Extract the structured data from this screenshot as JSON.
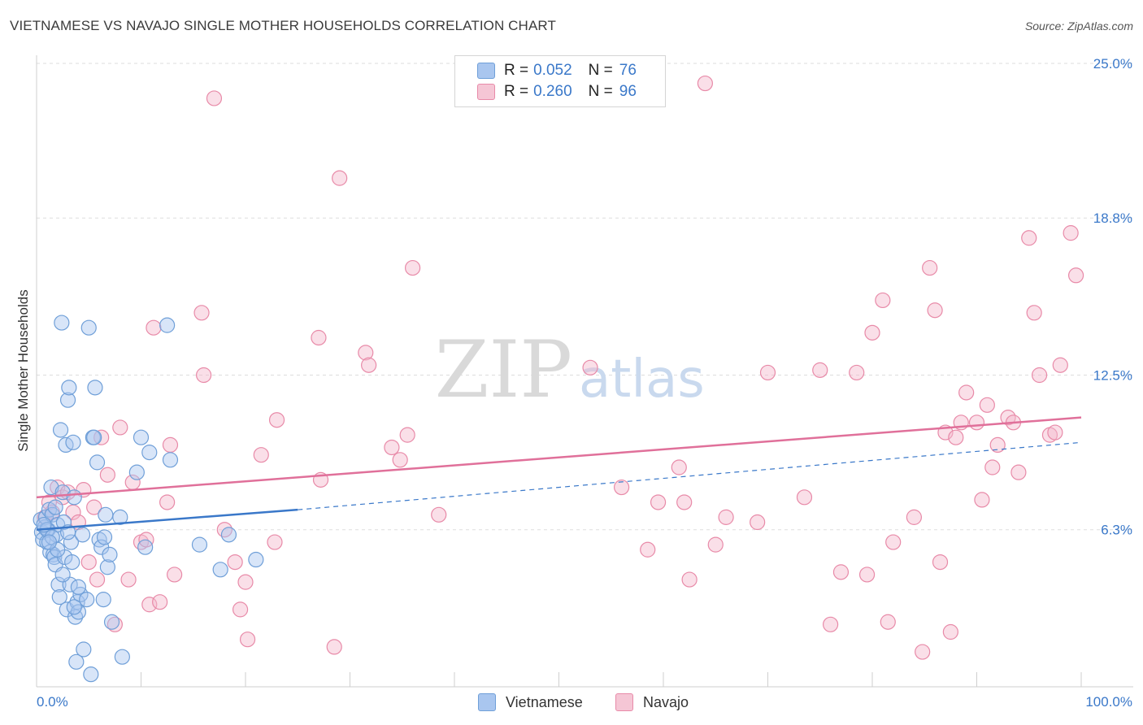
{
  "title": "VIETNAMESE VS NAVAJO SINGLE MOTHER HOUSEHOLDS CORRELATION CHART",
  "source": "Source: ZipAtlas.com",
  "watermark": {
    "zip": "ZIP",
    "atlas": "atlas"
  },
  "colors": {
    "blue_fill": "#a9c6ef",
    "blue_stroke": "#6f9fd8",
    "blue_line": "#3a78c9",
    "pink_fill": "#f5b9cc",
    "pink_stroke": "#e88aa8",
    "pink_line": "#e0709a",
    "axis_text": "#3a78c9",
    "grid": "#dddddd"
  },
  "legend": {
    "rows": [
      {
        "r_label": "R =",
        "r_value": "0.052",
        "n_label": "N =",
        "n_value": "76"
      },
      {
        "r_label": "R =",
        "r_value": "0.260",
        "n_label": "N =",
        "n_value": "96"
      }
    ]
  },
  "bottom_legend": {
    "series1": "Vietnamese",
    "series2": "Navajo"
  },
  "chart_data": {
    "type": "scatter",
    "title": "VIETNAMESE VS NAVAJO SINGLE MOTHER HOUSEHOLDS CORRELATION CHART",
    "xlabel": "",
    "ylabel": "Single Mother Households",
    "xlim": [
      0,
      100
    ],
    "ylim": [
      0,
      25
    ],
    "x_tick_labels": [
      "0.0%",
      "100.0%"
    ],
    "y_ticks": [
      6.3,
      12.5,
      18.8,
      25.0
    ],
    "y_tick_labels": [
      "6.3%",
      "12.5%",
      "18.8%",
      "25.0%"
    ],
    "grid": "horizontal dashed",
    "legend_position": "top-center",
    "series": [
      {
        "name": "Vietnamese",
        "R": 0.052,
        "N": 76,
        "trend": {
          "x": [
            0,
            25
          ],
          "y": [
            6.3,
            7.1
          ],
          "dashed_to": [
            100,
            9.8
          ]
        },
        "points": [
          [
            0.4,
            6.7
          ],
          [
            0.5,
            6.2
          ],
          [
            0.6,
            5.9
          ],
          [
            0.8,
            6.4
          ],
          [
            0.9,
            6.8
          ],
          [
            1.0,
            5.8
          ],
          [
            1.1,
            6.3
          ],
          [
            1.2,
            7.1
          ],
          [
            1.3,
            5.4
          ],
          [
            1.4,
            8.0
          ],
          [
            1.5,
            6.9
          ],
          [
            1.6,
            5.3
          ],
          [
            1.7,
            5.2
          ],
          [
            1.8,
            4.9
          ],
          [
            1.9,
            6.1
          ],
          [
            2.0,
            6.5
          ],
          [
            2.1,
            4.1
          ],
          [
            2.2,
            3.6
          ],
          [
            2.3,
            10.3
          ],
          [
            2.4,
            14.6
          ],
          [
            2.5,
            7.8
          ],
          [
            2.6,
            6.6
          ],
          [
            2.7,
            5.2
          ],
          [
            2.8,
            9.7
          ],
          [
            2.9,
            3.1
          ],
          [
            3.0,
            11.5
          ],
          [
            3.1,
            12.0
          ],
          [
            3.2,
            4.1
          ],
          [
            3.3,
            5.8
          ],
          [
            3.4,
            5.0
          ],
          [
            3.5,
            9.8
          ],
          [
            3.6,
            7.6
          ],
          [
            3.7,
            2.8
          ],
          [
            3.8,
            1.0
          ],
          [
            3.9,
            3.4
          ],
          [
            4.0,
            3.0
          ],
          [
            4.2,
            3.7
          ],
          [
            4.4,
            6.1
          ],
          [
            4.5,
            1.5
          ],
          [
            4.8,
            3.5
          ],
          [
            5.0,
            14.4
          ],
          [
            5.2,
            0.5
          ],
          [
            5.4,
            10.0
          ],
          [
            5.6,
            12.0
          ],
          [
            5.8,
            9.0
          ],
          [
            6.0,
            5.9
          ],
          [
            6.2,
            5.6
          ],
          [
            6.4,
            3.5
          ],
          [
            6.6,
            6.9
          ],
          [
            6.8,
            4.8
          ],
          [
            7.0,
            5.3
          ],
          [
            7.2,
            2.6
          ],
          [
            8.0,
            6.8
          ],
          [
            8.2,
            1.2
          ],
          [
            9.6,
            8.6
          ],
          [
            10.0,
            10.0
          ],
          [
            10.4,
            5.6
          ],
          [
            10.8,
            9.4
          ],
          [
            12.5,
            14.5
          ],
          [
            12.8,
            9.1
          ],
          [
            15.6,
            5.7
          ],
          [
            17.6,
            4.7
          ],
          [
            18.4,
            6.1
          ],
          [
            21.0,
            5.1
          ],
          [
            1.0,
            6.3
          ],
          [
            1.5,
            6.0
          ],
          [
            0.7,
            6.5
          ],
          [
            2.0,
            5.5
          ],
          [
            1.2,
            5.8
          ],
          [
            3.0,
            6.2
          ],
          [
            2.5,
            4.5
          ],
          [
            4.0,
            4.0
          ],
          [
            5.5,
            10.0
          ],
          [
            6.5,
            6.0
          ],
          [
            1.8,
            7.2
          ],
          [
            3.6,
            3.2
          ]
        ]
      },
      {
        "name": "Navajo",
        "R": 0.26,
        "N": 96,
        "trend": {
          "x": [
            0,
            100
          ],
          "y": [
            7.6,
            10.8
          ]
        },
        "points": [
          [
            0.8,
            6.8
          ],
          [
            1.2,
            7.4
          ],
          [
            1.5,
            7.0
          ],
          [
            2.0,
            8.0
          ],
          [
            2.5,
            7.6
          ],
          [
            3.0,
            7.8
          ],
          [
            3.5,
            7.0
          ],
          [
            4.0,
            6.6
          ],
          [
            4.5,
            7.9
          ],
          [
            5.0,
            5.0
          ],
          [
            5.5,
            7.2
          ],
          [
            5.8,
            4.3
          ],
          [
            6.2,
            10.0
          ],
          [
            6.8,
            8.5
          ],
          [
            7.5,
            2.5
          ],
          [
            8.0,
            10.4
          ],
          [
            8.8,
            4.3
          ],
          [
            9.2,
            8.2
          ],
          [
            10.0,
            5.8
          ],
          [
            10.5,
            5.9
          ],
          [
            10.8,
            3.3
          ],
          [
            11.2,
            14.4
          ],
          [
            11.8,
            3.4
          ],
          [
            12.5,
            7.4
          ],
          [
            12.8,
            9.7
          ],
          [
            13.2,
            4.5
          ],
          [
            15.8,
            15.0
          ],
          [
            16.0,
            12.5
          ],
          [
            17.0,
            23.6
          ],
          [
            18.0,
            6.3
          ],
          [
            19.0,
            5.0
          ],
          [
            19.5,
            3.1
          ],
          [
            20.0,
            4.2
          ],
          [
            20.2,
            1.9
          ],
          [
            21.5,
            9.3
          ],
          [
            22.8,
            5.8
          ],
          [
            23.0,
            10.7
          ],
          [
            27.0,
            14.0
          ],
          [
            27.2,
            8.3
          ],
          [
            28.5,
            1.6
          ],
          [
            29.0,
            20.4
          ],
          [
            31.5,
            13.4
          ],
          [
            31.8,
            12.9
          ],
          [
            34.0,
            9.6
          ],
          [
            34.8,
            9.1
          ],
          [
            35.5,
            10.1
          ],
          [
            36.0,
            16.8
          ],
          [
            38.5,
            6.9
          ],
          [
            53.0,
            12.8
          ],
          [
            56.0,
            8.0
          ],
          [
            58.5,
            5.5
          ],
          [
            59.5,
            7.4
          ],
          [
            61.5,
            8.8
          ],
          [
            62.0,
            7.4
          ],
          [
            62.5,
            4.3
          ],
          [
            64.0,
            24.2
          ],
          [
            65.0,
            5.7
          ],
          [
            66.0,
            6.8
          ],
          [
            69.0,
            6.6
          ],
          [
            73.5,
            7.6
          ],
          [
            75.0,
            12.7
          ],
          [
            76.0,
            2.5
          ],
          [
            77.0,
            4.6
          ],
          [
            78.5,
            12.6
          ],
          [
            79.5,
            4.5
          ],
          [
            80.0,
            14.2
          ],
          [
            81.0,
            15.5
          ],
          [
            81.5,
            2.6
          ],
          [
            82.0,
            5.8
          ],
          [
            84.0,
            6.8
          ],
          [
            84.8,
            1.4
          ],
          [
            85.5,
            16.8
          ],
          [
            86.0,
            15.1
          ],
          [
            86.5,
            5.0
          ],
          [
            87.0,
            10.2
          ],
          [
            88.0,
            10.0
          ],
          [
            88.5,
            10.6
          ],
          [
            89.0,
            11.8
          ],
          [
            90.0,
            10.6
          ],
          [
            90.5,
            7.5
          ],
          [
            91.0,
            11.3
          ],
          [
            91.5,
            8.8
          ],
          [
            92.0,
            9.7
          ],
          [
            93.0,
            10.8
          ],
          [
            93.5,
            10.6
          ],
          [
            94.0,
            8.6
          ],
          [
            95.0,
            18.0
          ],
          [
            95.5,
            15.0
          ],
          [
            96.0,
            12.5
          ],
          [
            97.0,
            10.1
          ],
          [
            97.5,
            10.2
          ],
          [
            98.0,
            12.9
          ],
          [
            99.0,
            18.2
          ],
          [
            99.5,
            16.5
          ],
          [
            87.5,
            2.2
          ],
          [
            70.0,
            12.6
          ]
        ]
      }
    ]
  }
}
